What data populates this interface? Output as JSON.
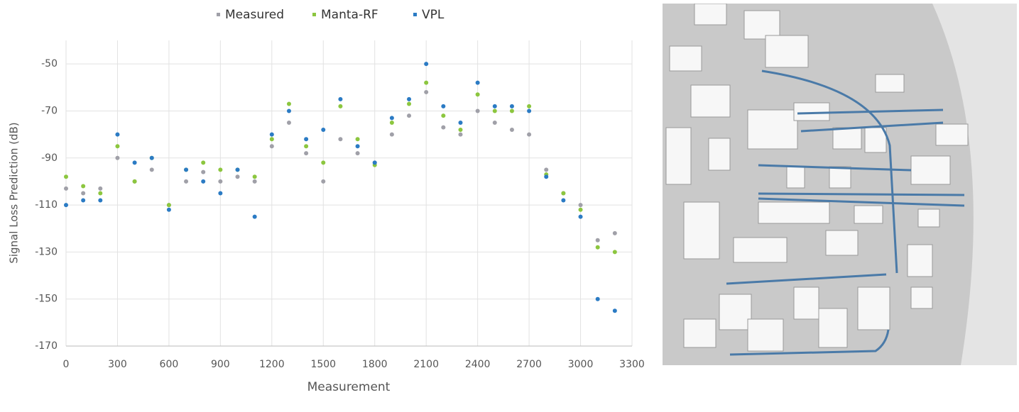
{
  "chart_data": {
    "type": "scatter",
    "x_label": "Measurement",
    "y_label": "Signal Loss Prediction (dB)",
    "x": [
      0,
      100,
      200,
      300,
      400,
      500,
      600,
      700,
      800,
      900,
      1000,
      1100,
      1200,
      1300,
      1400,
      1500,
      1600,
      1700,
      1800,
      1900,
      2000,
      2100,
      2200,
      2300,
      2400,
      2500,
      2600,
      2700,
      2800,
      2900,
      3000,
      3100,
      3200
    ],
    "series": [
      {
        "name": "Measured",
        "color": "#a0a0a8",
        "values": [
          -103,
          -105,
          -103,
          -90,
          -100,
          -95,
          -110,
          -100,
          -96,
          -100,
          -98,
          -100,
          -85,
          -75,
          -88,
          -100,
          -82,
          -88,
          -92,
          -80,
          -72,
          -62,
          -77,
          -80,
          -70,
          -75,
          -78,
          -80,
          -95,
          -105,
          -110,
          -125,
          -122
        ]
      },
      {
        "name": "Manta-RF",
        "color": "#8cc63f",
        "values": [
          -98,
          -102,
          -105,
          -85,
          -100,
          -90,
          -110,
          -95,
          -92,
          -95,
          -95,
          -98,
          -82,
          -67,
          -85,
          -92,
          -68,
          -82,
          -93,
          -75,
          -67,
          -58,
          -72,
          -78,
          -63,
          -70,
          -70,
          -68,
          -97,
          -105,
          -112,
          -128,
          -130
        ]
      },
      {
        "name": "VPL",
        "color": "#2b7bc4",
        "values": [
          -110,
          -108,
          -108,
          -80,
          -92,
          -90,
          -112,
          -95,
          -100,
          -105,
          -95,
          -115,
          -80,
          -70,
          -82,
          -78,
          -65,
          -85,
          -92,
          -73,
          -65,
          -50,
          -68,
          -75,
          -58,
          -68,
          -68,
          -70,
          -98,
          -108,
          -115,
          -150,
          -155
        ]
      }
    ],
    "xlim": [
      0,
      3300
    ],
    "xticks": [
      0,
      300,
      600,
      900,
      1200,
      1500,
      1800,
      2100,
      2400,
      2700,
      3000,
      3300
    ],
    "ylim": [
      -170,
      -40
    ],
    "yticks": [
      -50,
      -70,
      -90,
      -110,
      -130,
      -150,
      -170
    ],
    "grid": true,
    "legend": "top"
  }
}
